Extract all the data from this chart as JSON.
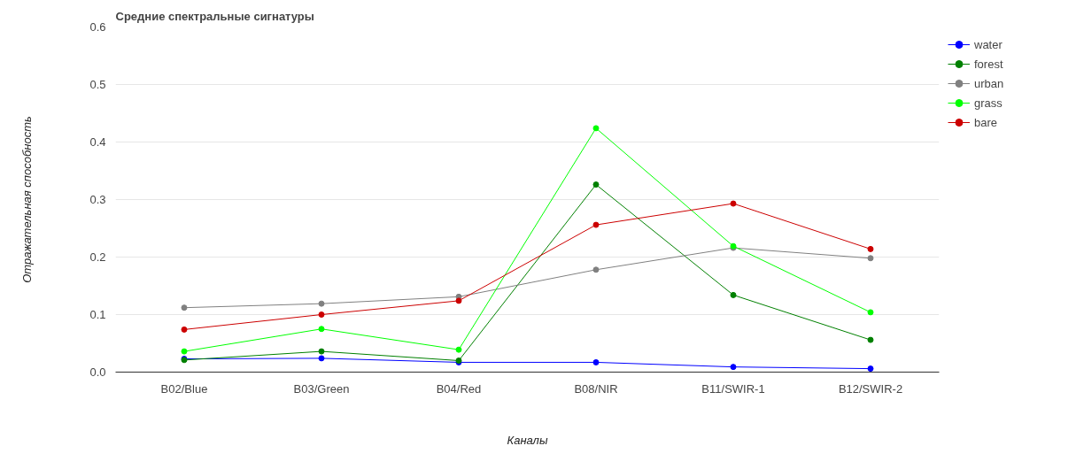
{
  "chart_data": {
    "type": "line",
    "title": "Средние спектральные сигнатуры",
    "xlabel": "Каналы",
    "ylabel": "Отражательная способность",
    "categories": [
      "B02/Blue",
      "B03/Green",
      "B04/Red",
      "B08/NIR",
      "B11/SWIR-1",
      "B12/SWIR-2"
    ],
    "series": [
      {
        "name": "water",
        "color": "#0000ff",
        "values": [
          0.023,
          0.024,
          0.017,
          0.017,
          0.009,
          0.006
        ]
      },
      {
        "name": "forest",
        "color": "#008000",
        "values": [
          0.021,
          0.036,
          0.02,
          0.326,
          0.134,
          0.056
        ]
      },
      {
        "name": "urban",
        "color": "#808080",
        "values": [
          0.112,
          0.119,
          0.131,
          0.178,
          0.216,
          0.198
        ]
      },
      {
        "name": "grass",
        "color": "#00ff00",
        "values": [
          0.036,
          0.075,
          0.039,
          0.424,
          0.219,
          0.104
        ]
      },
      {
        "name": "bare",
        "color": "#cc0000",
        "values": [
          0.074,
          0.1,
          0.124,
          0.256,
          0.293,
          0.214
        ]
      }
    ],
    "ylim": [
      0,
      0.6
    ],
    "yticks": [
      {
        "value": 0,
        "label": "0.0"
      },
      {
        "value": 0.1,
        "label": "0.1"
      },
      {
        "value": 0.2,
        "label": "0.2"
      },
      {
        "value": 0.3,
        "label": "0.3"
      },
      {
        "value": 0.4,
        "label": "0.4"
      },
      {
        "value": 0.5,
        "label": "0.5"
      },
      {
        "value": 0.6,
        "label": "0.6"
      }
    ],
    "grid": "y",
    "legend": "top right",
    "marker": "circle",
    "line_style": "solid"
  }
}
